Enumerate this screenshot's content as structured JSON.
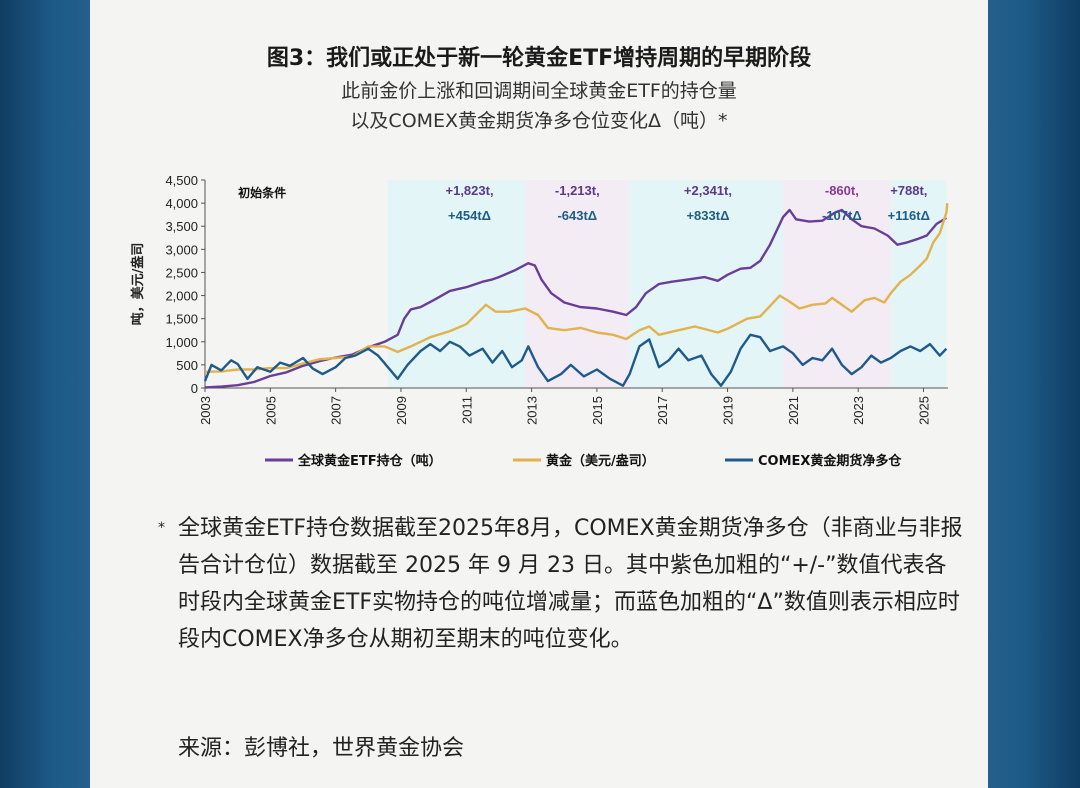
{
  "title": "图3：我们或正处于新一轮黄金ETF增持周期的早期阶段",
  "subtitle_line1": "此前金价上涨和回调期间全球黄金ETF的持仓量",
  "subtitle_line2": "以及COMEX黄金期货净多仓位变化Δ（吨）*",
  "chart_data": {
    "type": "line",
    "ylabel": "吨，美元/盎司",
    "ylim": [
      0,
      4500
    ],
    "yticks": [
      0,
      500,
      1000,
      1500,
      2000,
      2500,
      3000,
      3500,
      4000,
      4500
    ],
    "ytick_labels": [
      "0",
      "500",
      "1,000",
      "1,500",
      "2,000",
      "2,500",
      "3,000",
      "3,500",
      "4,000",
      "4,500"
    ],
    "xlim": [
      2003,
      2025.75
    ],
    "xticks": [
      "2003",
      "2005",
      "2007",
      "2009",
      "2011",
      "2013",
      "2015",
      "2017",
      "2019",
      "2021",
      "2023",
      "2025"
    ],
    "legend": "bottom",
    "initial_label": "初始条件",
    "periods": [
      {
        "start": 2008.6,
        "end": 2012.8,
        "color": "#e3f5f6",
        "line1": "+1,823t,",
        "line2": "+454tΔ",
        "line1_color": "#5b3a8a",
        "line2_color": "#1e5c8a",
        "label_x": 2011.1
      },
      {
        "start": 2012.8,
        "end": 2016.0,
        "color": "#f4ecf5",
        "line1": "-1,213t,",
        "line2": "-643tΔ",
        "line1_color": "#5b3a8a",
        "line2_color": "#1e5c8a",
        "label_x": 2014.4
      },
      {
        "start": 2016.0,
        "end": 2020.7,
        "color": "#e3f5f6",
        "line1": "+2,341t,",
        "line2": "+833tΔ",
        "line1_color": "#5b3a8a",
        "line2_color": "#1e5c8a",
        "label_x": 2018.4
      },
      {
        "start": 2020.7,
        "end": 2024.0,
        "color": "#f4ecf5",
        "line1": "-860t,",
        "line2": "-107tΔ",
        "line1_color": "#8a3a8f",
        "line2_color": "#1e5c8a",
        "label_x": 2022.5
      },
      {
        "start": 2024.0,
        "end": 2025.7,
        "color": "#e3f5f6",
        "line1": "+788t,",
        "line2": "+116tΔ",
        "line1_color": "#5b3a8a",
        "line2_color": "#1e5c8a",
        "label_x": 2024.55
      }
    ],
    "series": [
      {
        "name": "全球黄金ETF持仓（吨）",
        "color": "#6a3d9a",
        "points": [
          [
            2003.0,
            10
          ],
          [
            2003.5,
            30
          ],
          [
            2004.0,
            60
          ],
          [
            2004.5,
            130
          ],
          [
            2005.0,
            260
          ],
          [
            2005.5,
            340
          ],
          [
            2006.0,
            480
          ],
          [
            2006.5,
            580
          ],
          [
            2007.0,
            660
          ],
          [
            2007.5,
            720
          ],
          [
            2008.0,
            880
          ],
          [
            2008.5,
            1000
          ],
          [
            2008.9,
            1150
          ],
          [
            2009.1,
            1500
          ],
          [
            2009.3,
            1700
          ],
          [
            2009.6,
            1750
          ],
          [
            2010.0,
            1900
          ],
          [
            2010.5,
            2100
          ],
          [
            2011.0,
            2180
          ],
          [
            2011.5,
            2300
          ],
          [
            2011.8,
            2350
          ],
          [
            2012.0,
            2400
          ],
          [
            2012.5,
            2550
          ],
          [
            2012.9,
            2700
          ],
          [
            2013.1,
            2650
          ],
          [
            2013.3,
            2350
          ],
          [
            2013.6,
            2050
          ],
          [
            2014.0,
            1850
          ],
          [
            2014.5,
            1750
          ],
          [
            2015.0,
            1720
          ],
          [
            2015.5,
            1650
          ],
          [
            2015.9,
            1580
          ],
          [
            2016.2,
            1750
          ],
          [
            2016.5,
            2050
          ],
          [
            2016.9,
            2250
          ],
          [
            2017.3,
            2300
          ],
          [
            2017.8,
            2350
          ],
          [
            2018.3,
            2400
          ],
          [
            2018.7,
            2320
          ],
          [
            2019.0,
            2450
          ],
          [
            2019.4,
            2580
          ],
          [
            2019.7,
            2600
          ],
          [
            2020.0,
            2750
          ],
          [
            2020.3,
            3100
          ],
          [
            2020.7,
            3700
          ],
          [
            2020.9,
            3850
          ],
          [
            2021.1,
            3650
          ],
          [
            2021.5,
            3600
          ],
          [
            2021.9,
            3620
          ],
          [
            2022.3,
            3800
          ],
          [
            2022.5,
            3850
          ],
          [
            2022.8,
            3650
          ],
          [
            2023.1,
            3500
          ],
          [
            2023.5,
            3450
          ],
          [
            2023.9,
            3300
          ],
          [
            2024.2,
            3100
          ],
          [
            2024.5,
            3150
          ],
          [
            2024.8,
            3220
          ],
          [
            2025.1,
            3300
          ],
          [
            2025.4,
            3550
          ],
          [
            2025.7,
            3680
          ]
        ]
      },
      {
        "name": "黄金（美元/盎司）",
        "color": "#e2b24e",
        "points": [
          [
            2003.0,
            350
          ],
          [
            2003.5,
            360
          ],
          [
            2004.0,
            400
          ],
          [
            2004.5,
            400
          ],
          [
            2005.0,
            430
          ],
          [
            2005.5,
            430
          ],
          [
            2006.0,
            530
          ],
          [
            2006.5,
            620
          ],
          [
            2007.0,
            650
          ],
          [
            2007.5,
            680
          ],
          [
            2008.0,
            900
          ],
          [
            2008.5,
            900
          ],
          [
            2008.9,
            780
          ],
          [
            2009.3,
            900
          ],
          [
            2009.9,
            1100
          ],
          [
            2010.5,
            1230
          ],
          [
            2011.0,
            1380
          ],
          [
            2011.6,
            1800
          ],
          [
            2011.9,
            1650
          ],
          [
            2012.3,
            1650
          ],
          [
            2012.8,
            1720
          ],
          [
            2013.2,
            1580
          ],
          [
            2013.5,
            1300
          ],
          [
            2014.0,
            1250
          ],
          [
            2014.5,
            1300
          ],
          [
            2015.0,
            1200
          ],
          [
            2015.5,
            1150
          ],
          [
            2015.9,
            1060
          ],
          [
            2016.3,
            1250
          ],
          [
            2016.6,
            1330
          ],
          [
            2016.9,
            1150
          ],
          [
            2017.5,
            1250
          ],
          [
            2018.0,
            1330
          ],
          [
            2018.7,
            1200
          ],
          [
            2019.0,
            1280
          ],
          [
            2019.6,
            1500
          ],
          [
            2020.0,
            1550
          ],
          [
            2020.6,
            2000
          ],
          [
            2020.9,
            1870
          ],
          [
            2021.2,
            1720
          ],
          [
            2021.6,
            1800
          ],
          [
            2022.0,
            1830
          ],
          [
            2022.2,
            1950
          ],
          [
            2022.8,
            1650
          ],
          [
            2023.2,
            1900
          ],
          [
            2023.5,
            1950
          ],
          [
            2023.8,
            1850
          ],
          [
            2024.0,
            2050
          ],
          [
            2024.3,
            2300
          ],
          [
            2024.6,
            2450
          ],
          [
            2024.9,
            2650
          ],
          [
            2025.1,
            2800
          ],
          [
            2025.3,
            3150
          ],
          [
            2025.5,
            3350
          ],
          [
            2025.7,
            3800
          ],
          [
            2025.73,
            4000
          ]
        ]
      },
      {
        "name": "COMEX黄金期货净多仓",
        "color": "#1e5a8c",
        "points": [
          [
            2003.0,
            150
          ],
          [
            2003.2,
            500
          ],
          [
            2003.5,
            380
          ],
          [
            2003.8,
            600
          ],
          [
            2004.0,
            520
          ],
          [
            2004.3,
            200
          ],
          [
            2004.6,
            450
          ],
          [
            2005.0,
            350
          ],
          [
            2005.3,
            550
          ],
          [
            2005.6,
            480
          ],
          [
            2006.0,
            650
          ],
          [
            2006.3,
            420
          ],
          [
            2006.6,
            300
          ],
          [
            2007.0,
            450
          ],
          [
            2007.3,
            650
          ],
          [
            2007.6,
            700
          ],
          [
            2008.0,
            850
          ],
          [
            2008.3,
            700
          ],
          [
            2008.6,
            450
          ],
          [
            2008.9,
            200
          ],
          [
            2009.2,
            500
          ],
          [
            2009.6,
            800
          ],
          [
            2009.9,
            950
          ],
          [
            2010.2,
            800
          ],
          [
            2010.5,
            1000
          ],
          [
            2010.8,
            900
          ],
          [
            2011.1,
            700
          ],
          [
            2011.5,
            850
          ],
          [
            2011.8,
            550
          ],
          [
            2012.1,
            800
          ],
          [
            2012.4,
            450
          ],
          [
            2012.7,
            600
          ],
          [
            2012.9,
            900
          ],
          [
            2013.2,
            450
          ],
          [
            2013.5,
            150
          ],
          [
            2013.9,
            300
          ],
          [
            2014.2,
            500
          ],
          [
            2014.6,
            250
          ],
          [
            2015.0,
            400
          ],
          [
            2015.4,
            200
          ],
          [
            2015.8,
            50
          ],
          [
            2016.0,
            300
          ],
          [
            2016.3,
            900
          ],
          [
            2016.6,
            1050
          ],
          [
            2016.9,
            450
          ],
          [
            2017.2,
            600
          ],
          [
            2017.5,
            850
          ],
          [
            2017.8,
            600
          ],
          [
            2018.2,
            700
          ],
          [
            2018.5,
            300
          ],
          [
            2018.8,
            50
          ],
          [
            2019.1,
            350
          ],
          [
            2019.4,
            850
          ],
          [
            2019.7,
            1150
          ],
          [
            2020.0,
            1100
          ],
          [
            2020.3,
            800
          ],
          [
            2020.7,
            900
          ],
          [
            2021.0,
            750
          ],
          [
            2021.3,
            500
          ],
          [
            2021.6,
            650
          ],
          [
            2021.9,
            600
          ],
          [
            2022.2,
            850
          ],
          [
            2022.5,
            500
          ],
          [
            2022.8,
            300
          ],
          [
            2023.1,
            450
          ],
          [
            2023.4,
            700
          ],
          [
            2023.7,
            550
          ],
          [
            2024.0,
            650
          ],
          [
            2024.3,
            800
          ],
          [
            2024.6,
            900
          ],
          [
            2024.9,
            800
          ],
          [
            2025.2,
            950
          ],
          [
            2025.5,
            700
          ],
          [
            2025.7,
            850
          ]
        ]
      }
    ]
  },
  "note_star": "*",
  "note": "全球黄金ETF持仓数据截至2025年8月，COMEX黄金期货净多仓（非商业与非报告合计仓位）数据截至 2025 年 9 月 23 日。其中紫色加粗的“+/-”数值代表各时段内全球黄金ETF实物持仓的吨位增减量；而蓝色加粗的“Δ”数值则表示相应时段内COMEX净多仓从期初至期末的吨位变化。",
  "source": "来源：彭博社，世界黄金协会"
}
